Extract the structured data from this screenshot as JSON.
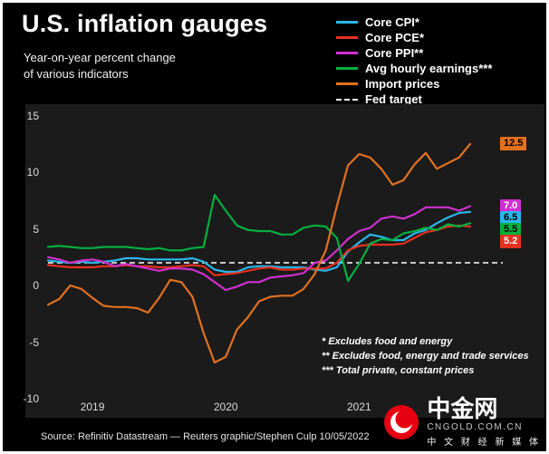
{
  "branding": {
    "name": "中金网",
    "domain": "CNGOLD.COM.CN",
    "tagline": "中 文 财 经 新 媒 体"
  },
  "chart_data": {
    "type": "line",
    "title": "U.S. inflation gauges",
    "subtitle": [
      "Year-on-year percent change",
      "of various indicators"
    ],
    "source": "Source: Refinitiv Datastream — Reuters graphic/Stephen Culp 10/05/2022",
    "grid": false,
    "legend_position": "top-right",
    "ylim": [
      -10,
      15
    ],
    "yticks": [
      15,
      10,
      5,
      0,
      -5,
      -10
    ],
    "xticks": [
      {
        "label": "2019",
        "month_index": 4
      },
      {
        "label": "2020",
        "month_index": 16
      },
      {
        "label": "2021",
        "month_index": 28
      }
    ],
    "x": [
      "2019-01",
      "2019-02",
      "2019-03",
      "2019-04",
      "2019-05",
      "2019-06",
      "2019-07",
      "2019-08",
      "2019-09",
      "2019-10",
      "2019-11",
      "2019-12",
      "2020-01",
      "2020-02",
      "2020-03",
      "2020-04",
      "2020-05",
      "2020-06",
      "2020-07",
      "2020-08",
      "2020-09",
      "2020-10",
      "2020-11",
      "2020-12",
      "2021-01",
      "2021-02",
      "2021-03",
      "2021-04",
      "2021-05",
      "2021-06",
      "2021-07",
      "2021-08",
      "2021-09",
      "2021-10",
      "2021-11",
      "2021-12",
      "2022-01",
      "2022-02",
      "2022-03"
    ],
    "series": [
      {
        "name": "Core CPI*",
        "color": "#29b7ea",
        "values": [
          2.2,
          2.1,
          2.0,
          2.1,
          2.0,
          2.1,
          2.2,
          2.4,
          2.4,
          2.3,
          2.3,
          2.3,
          2.3,
          2.4,
          2.1,
          1.4,
          1.2,
          1.2,
          1.6,
          1.7,
          1.7,
          1.6,
          1.6,
          1.6,
          1.4,
          1.3,
          1.6,
          3.0,
          3.8,
          4.5,
          4.3,
          4.0,
          4.0,
          4.6,
          4.9,
          5.5,
          6.0,
          6.4,
          6.5
        ]
      },
      {
        "name": "Core PCE*",
        "color": "#e8301e",
        "values": [
          1.8,
          1.7,
          1.6,
          1.6,
          1.6,
          1.7,
          1.7,
          1.8,
          1.7,
          1.7,
          1.6,
          1.6,
          1.7,
          1.8,
          1.7,
          0.9,
          1.0,
          1.1,
          1.3,
          1.5,
          1.6,
          1.4,
          1.4,
          1.5,
          1.5,
          1.5,
          2.0,
          3.1,
          3.5,
          3.6,
          3.6,
          3.6,
          3.7,
          4.2,
          4.7,
          4.9,
          5.2,
          5.3,
          5.2
        ]
      },
      {
        "name": "Core PPI**",
        "color": "#d02fd0",
        "values": [
          2.5,
          2.3,
          2.0,
          2.2,
          2.3,
          2.1,
          1.7,
          1.9,
          1.7,
          1.5,
          1.3,
          1.5,
          1.5,
          1.4,
          1.0,
          0.3,
          -0.4,
          -0.1,
          0.3,
          0.3,
          0.7,
          0.8,
          0.9,
          1.1,
          2.0,
          2.2,
          3.1,
          4.1,
          4.8,
          5.1,
          5.9,
          6.1,
          5.9,
          6.3,
          6.9,
          6.9,
          6.9,
          6.6,
          7.0
        ]
      },
      {
        "name": "Avg hourly earnings***",
        "color": "#00b140",
        "values": [
          3.4,
          3.5,
          3.4,
          3.3,
          3.3,
          3.4,
          3.4,
          3.4,
          3.3,
          3.2,
          3.3,
          3.1,
          3.1,
          3.3,
          3.4,
          8.0,
          6.6,
          5.3,
          4.9,
          4.8,
          4.8,
          4.5,
          4.5,
          5.1,
          5.3,
          5.2,
          4.2,
          0.4,
          1.9,
          3.7,
          4.1,
          4.0,
          4.6,
          4.8,
          5.1,
          4.9,
          5.4,
          5.2,
          5.5
        ]
      },
      {
        "name": "Import prices",
        "color": "#e1711f",
        "values": [
          -1.7,
          -1.2,
          0.0,
          -0.3,
          -1.1,
          -1.8,
          -1.9,
          -1.9,
          -2.0,
          -2.4,
          -1.1,
          0.5,
          0.3,
          -1.0,
          -4.2,
          -6.8,
          -6.3,
          -3.9,
          -2.8,
          -1.4,
          -1.0,
          -0.9,
          -0.9,
          -0.3,
          1.0,
          3.1,
          7.0,
          10.6,
          11.6,
          11.3,
          10.3,
          8.9,
          9.3,
          10.7,
          11.7,
          10.3,
          10.8,
          11.3,
          12.5
        ]
      }
    ],
    "fed_target": {
      "label": "Fed target",
      "value": 2
    },
    "end_labels": [
      {
        "label": "12.5",
        "value": 12.5,
        "color": "#e1711f",
        "text_color": "#000000"
      },
      {
        "label": "7.0",
        "value": 7.0,
        "color": "#d02fd0",
        "text_color": "#ffffff"
      },
      {
        "label": "6.5",
        "value": 6.5,
        "color": "#29b7ea",
        "text_color": "#000000"
      },
      {
        "label": "5.5",
        "value": 5.5,
        "color": "#00b140",
        "text_color": "#000000"
      },
      {
        "label": "5.2",
        "value": 5.2,
        "color": "#e8301e",
        "text_color": "#ffffff"
      }
    ],
    "footnotes": [
      "* Excludes food and energy",
      "** Excludes food, energy and trade services",
      "*** Total private, constant prices"
    ]
  }
}
